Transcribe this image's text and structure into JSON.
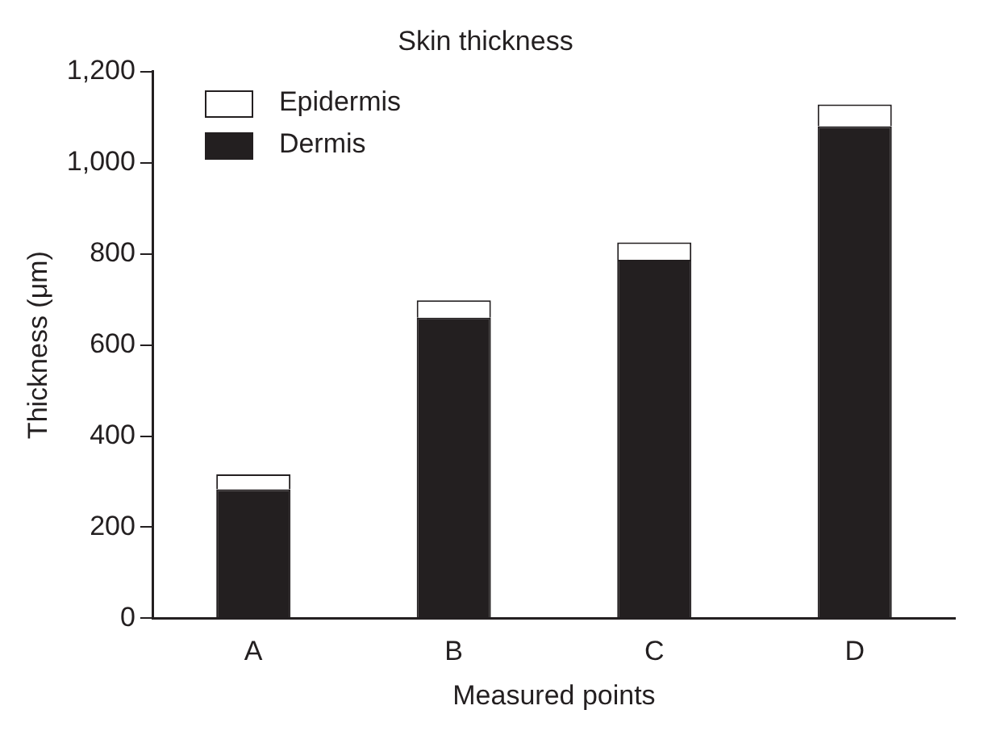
{
  "chart_data": {
    "type": "bar",
    "title": "Skin thickness",
    "xlabel": "Measured points",
    "ylabel": "Thickness (μm)",
    "categories": [
      "A",
      "B",
      "C",
      "D"
    ],
    "stacked": true,
    "series": [
      {
        "name": "Dermis",
        "color": "#231f20",
        "values": [
          283,
          660,
          787,
          1080
        ]
      },
      {
        "name": "Epidermis",
        "color": "#ffffff",
        "values": [
          33,
          38,
          38,
          48
        ]
      }
    ],
    "ylim": [
      0,
      1200
    ],
    "yticks": [
      {
        "value": 0,
        "label": "0"
      },
      {
        "value": 200,
        "label": "200"
      },
      {
        "value": 400,
        "label": "400"
      },
      {
        "value": 600,
        "label": "600"
      },
      {
        "value": 800,
        "label": "800"
      },
      {
        "value": 1000,
        "label": "1,000"
      },
      {
        "value": 1200,
        "label": "1,200"
      }
    ],
    "grid": false,
    "legend": "top left"
  }
}
